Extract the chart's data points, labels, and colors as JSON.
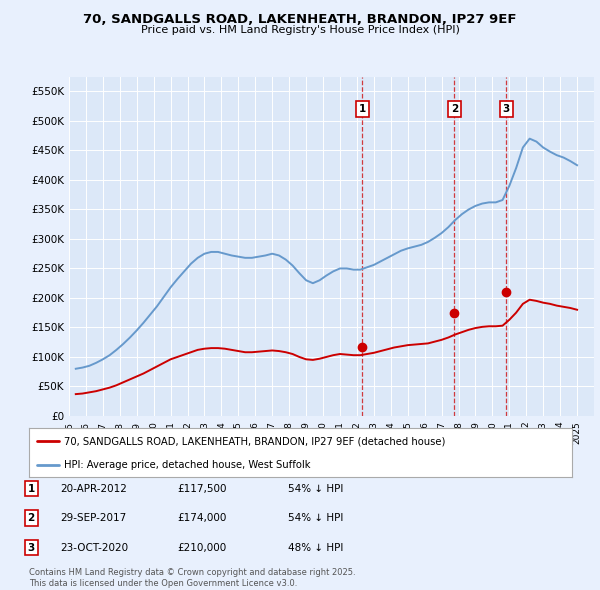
{
  "title": "70, SANDGALLS ROAD, LAKENHEATH, BRANDON, IP27 9EF",
  "subtitle": "Price paid vs. HM Land Registry's House Price Index (HPI)",
  "background_color": "#e8f0fd",
  "plot_bg_color": "#dce8f8",
  "ylim": [
    0,
    575000
  ],
  "yticks": [
    0,
    50000,
    100000,
    150000,
    200000,
    250000,
    300000,
    350000,
    400000,
    450000,
    500000,
    550000
  ],
  "ytick_labels": [
    "£0",
    "£50K",
    "£100K",
    "£150K",
    "£200K",
    "£250K",
    "£300K",
    "£350K",
    "£400K",
    "£450K",
    "£500K",
    "£550K"
  ],
  "sales": [
    {
      "date": 2012.31,
      "price": 117500,
      "label": "1"
    },
    {
      "date": 2017.75,
      "price": 174000,
      "label": "2"
    },
    {
      "date": 2020.81,
      "price": 210000,
      "label": "3"
    }
  ],
  "sale_line_color": "#cc0000",
  "hpi_line_color": "#6699cc",
  "legend_entries": [
    "70, SANDGALLS ROAD, LAKENHEATH, BRANDON, IP27 9EF (detached house)",
    "HPI: Average price, detached house, West Suffolk"
  ],
  "table_data": [
    [
      "1",
      "20-APR-2012",
      "£117,500",
      "54% ↓ HPI"
    ],
    [
      "2",
      "29-SEP-2017",
      "£174,000",
      "54% ↓ HPI"
    ],
    [
      "3",
      "23-OCT-2020",
      "£210,000",
      "48% ↓ HPI"
    ]
  ],
  "footnote": "Contains HM Land Registry data © Crown copyright and database right 2025.\nThis data is licensed under the Open Government Licence v3.0.",
  "hpi_data_x": [
    1995.4,
    1995.8,
    1996.2,
    1996.6,
    1997.0,
    1997.4,
    1997.8,
    1998.2,
    1998.6,
    1999.0,
    1999.4,
    1999.8,
    2000.2,
    2000.6,
    2001.0,
    2001.4,
    2001.8,
    2002.2,
    2002.6,
    2003.0,
    2003.4,
    2003.8,
    2004.2,
    2004.6,
    2005.0,
    2005.4,
    2005.8,
    2006.2,
    2006.6,
    2007.0,
    2007.4,
    2007.8,
    2008.2,
    2008.6,
    2009.0,
    2009.4,
    2009.8,
    2010.2,
    2010.6,
    2011.0,
    2011.4,
    2011.8,
    2012.2,
    2012.6,
    2013.0,
    2013.4,
    2013.8,
    2014.2,
    2014.6,
    2015.0,
    2015.4,
    2015.8,
    2016.2,
    2016.6,
    2017.0,
    2017.4,
    2017.8,
    2018.2,
    2018.6,
    2019.0,
    2019.4,
    2019.8,
    2020.2,
    2020.6,
    2021.0,
    2021.4,
    2021.8,
    2022.2,
    2022.6,
    2023.0,
    2023.4,
    2023.8,
    2024.2,
    2024.6,
    2025.0
  ],
  "hpi_data_y": [
    80000,
    82000,
    85000,
    90000,
    96000,
    103000,
    112000,
    122000,
    133000,
    145000,
    158000,
    172000,
    186000,
    202000,
    218000,
    232000,
    245000,
    258000,
    268000,
    275000,
    278000,
    278000,
    275000,
    272000,
    270000,
    268000,
    268000,
    270000,
    272000,
    275000,
    272000,
    265000,
    255000,
    242000,
    230000,
    225000,
    230000,
    238000,
    245000,
    250000,
    250000,
    248000,
    248000,
    252000,
    256000,
    262000,
    268000,
    274000,
    280000,
    284000,
    287000,
    290000,
    295000,
    302000,
    310000,
    320000,
    332000,
    342000,
    350000,
    356000,
    360000,
    362000,
    362000,
    366000,
    390000,
    420000,
    455000,
    470000,
    465000,
    455000,
    448000,
    442000,
    438000,
    432000,
    425000
  ],
  "red_data_x": [
    1995.4,
    1995.8,
    1996.2,
    1996.6,
    1997.0,
    1997.4,
    1997.8,
    1998.2,
    1998.6,
    1999.0,
    1999.4,
    1999.8,
    2000.2,
    2000.6,
    2001.0,
    2001.4,
    2001.8,
    2002.2,
    2002.6,
    2003.0,
    2003.4,
    2003.8,
    2004.2,
    2004.6,
    2005.0,
    2005.4,
    2005.8,
    2006.2,
    2006.6,
    2007.0,
    2007.4,
    2007.8,
    2008.2,
    2008.6,
    2009.0,
    2009.4,
    2009.8,
    2010.2,
    2010.6,
    2011.0,
    2011.4,
    2011.8,
    2012.2,
    2012.6,
    2013.0,
    2013.4,
    2013.8,
    2014.2,
    2014.6,
    2015.0,
    2015.4,
    2015.8,
    2016.2,
    2016.6,
    2017.0,
    2017.4,
    2017.8,
    2018.2,
    2018.6,
    2019.0,
    2019.4,
    2019.8,
    2020.2,
    2020.6,
    2021.0,
    2021.4,
    2021.8,
    2022.2,
    2022.6,
    2023.0,
    2023.4,
    2023.8,
    2024.2,
    2024.6,
    2025.0
  ],
  "red_data_y": [
    37000,
    38000,
    40000,
    42000,
    45000,
    48000,
    52000,
    57000,
    62000,
    67000,
    72000,
    78000,
    84000,
    90000,
    96000,
    100000,
    104000,
    108000,
    112000,
    114000,
    115000,
    115000,
    114000,
    112000,
    110000,
    108000,
    108000,
    109000,
    110000,
    111000,
    110000,
    108000,
    105000,
    100000,
    96000,
    95000,
    97000,
    100000,
    103000,
    105000,
    104000,
    103000,
    103000,
    105000,
    107000,
    110000,
    113000,
    116000,
    118000,
    120000,
    121000,
    122000,
    123000,
    126000,
    129000,
    133000,
    138000,
    142000,
    146000,
    149000,
    151000,
    152000,
    152000,
    153000,
    163000,
    175000,
    190000,
    197000,
    195000,
    192000,
    190000,
    187000,
    185000,
    183000,
    180000
  ]
}
